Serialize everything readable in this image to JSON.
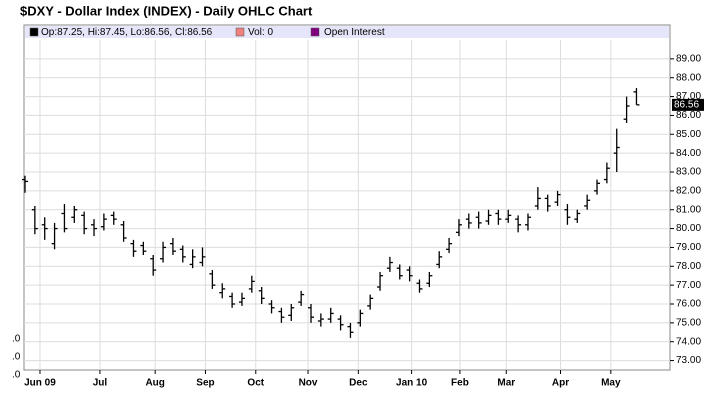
{
  "chart_data": {
    "type": "ohlc",
    "title": "$DXY - Dollar Index (INDEX) - Daily OHLC Chart",
    "legend": {
      "quote": "Op:87.25, Hi:87.45, Lo:86.56, Cl:86.56",
      "volume": "Vol: 0",
      "open_interest": "Open Interest"
    },
    "legend_colors": {
      "quote": "#000000",
      "volume": "#f08080",
      "open_interest": "#800080"
    },
    "last_label": "86.56",
    "last_value": 86.56,
    "volume_axis_labels": [
      ".0",
      ".0",
      ".0"
    ],
    "color": "#000000",
    "grid": true,
    "open": [
      82.6,
      81.0,
      80.2,
      79.2,
      80.8,
      80.6,
      80.7,
      80.2,
      80.1,
      80.7,
      80.2,
      79.2,
      79.1,
      78.4,
      78.4,
      79.2,
      78.9,
      78.1,
      78.2,
      77.6,
      76.6,
      76.4,
      76.1,
      76.8,
      76.7,
      76.0,
      75.6,
      75.4,
      76.1,
      75.8,
      75.1,
      75.2,
      75.2,
      74.8,
      75.0,
      75.9,
      76.9,
      77.9,
      77.9,
      77.8,
      77.1,
      77.1,
      78.1,
      78.9,
      79.8,
      80.5,
      80.6,
      80.4,
      80.8,
      80.5,
      80.5,
      80.2,
      81.2,
      81.6,
      81.4,
      81.0,
      80.5,
      81.2,
      82.0,
      82.6,
      84.0,
      85.8,
      87.25
    ],
    "high": [
      82.8,
      81.2,
      80.6,
      80.3,
      81.3,
      81.2,
      80.9,
      80.5,
      80.8,
      80.9,
      80.4,
      79.4,
      79.3,
      78.6,
      79.3,
      79.5,
      79.1,
      78.9,
      79.0,
      77.8,
      77.1,
      76.6,
      76.6,
      77.5,
      76.9,
      76.2,
      75.8,
      76.0,
      76.7,
      76.0,
      75.5,
      75.8,
      75.4,
      75.0,
      75.7,
      76.5,
      77.7,
      78.5,
      78.1,
      78.0,
      77.3,
      77.7,
      78.8,
      79.5,
      80.5,
      80.8,
      80.9,
      81.0,
      81.0,
      81.0,
      80.7,
      80.8,
      82.2,
      81.8,
      82.0,
      81.3,
      81.0,
      81.8,
      82.6,
      83.5,
      85.3,
      87.0,
      87.45
    ],
    "low": [
      81.9,
      79.7,
      79.4,
      78.9,
      79.8,
      80.3,
      79.7,
      79.6,
      79.9,
      80.2,
      79.3,
      78.5,
      78.6,
      77.5,
      78.2,
      78.6,
      78.2,
      77.9,
      78.0,
      76.8,
      76.3,
      75.8,
      75.9,
      76.6,
      76.0,
      75.5,
      75.0,
      75.1,
      75.9,
      75.0,
      74.8,
      75.0,
      74.6,
      74.2,
      74.8,
      75.7,
      76.7,
      77.7,
      77.3,
      77.2,
      76.6,
      76.9,
      77.9,
      78.7,
      79.6,
      80.0,
      80.0,
      80.2,
      80.2,
      80.3,
      79.8,
      79.9,
      81.0,
      80.9,
      81.2,
      80.2,
      80.3,
      81.0,
      81.8,
      82.4,
      83.0,
      85.6,
      86.56
    ],
    "close": [
      82.5,
      80.0,
      80.0,
      80.0,
      80.0,
      81.0,
      80.0,
      80.0,
      80.5,
      80.5,
      79.5,
      78.8,
      78.8,
      77.8,
      79.0,
      78.8,
      78.5,
      78.5,
      78.5,
      77.0,
      76.8,
      76.0,
      76.3,
      77.2,
      76.3,
      75.8,
      75.3,
      75.8,
      76.5,
      75.3,
      75.2,
      75.5,
      74.9,
      74.5,
      75.5,
      76.3,
      77.5,
      78.2,
      77.5,
      77.5,
      76.8,
      77.5,
      78.5,
      79.2,
      80.2,
      80.3,
      80.3,
      80.7,
      80.5,
      80.7,
      80.2,
      80.6,
      81.6,
      81.2,
      81.8,
      80.6,
      80.8,
      81.5,
      82.4,
      83.2,
      84.3,
      86.5,
      86.56
    ],
    "xlim": [
      -0.1,
      65.4
    ],
    "xticks": [
      {
        "value": 1.52,
        "label": "Jun 09"
      },
      {
        "value": 7.6,
        "label": "Jul"
      },
      {
        "value": 13.2,
        "label": "Aug"
      },
      {
        "value": 18.3,
        "label": "Sep"
      },
      {
        "value": 23.4,
        "label": "Oct"
      },
      {
        "value": 28.7,
        "label": "Nov"
      },
      {
        "value": 33.8,
        "label": "Dec"
      },
      {
        "value": 39.2,
        "label": "Jan 10"
      },
      {
        "value": 44.1,
        "label": "Feb"
      },
      {
        "value": 48.8,
        "label": "Mar"
      },
      {
        "value": 54.3,
        "label": "Apr"
      },
      {
        "value": 59.4,
        "label": "May"
      }
    ],
    "ylim": [
      72.5,
      90
    ],
    "yticks": [
      {
        "value": 73,
        "label": "73.00"
      },
      {
        "value": 74,
        "label": "74.00"
      },
      {
        "value": 75,
        "label": "75.00"
      },
      {
        "value": 76,
        "label": "76.00"
      },
      {
        "value": 77,
        "label": "77.00"
      },
      {
        "value": 78,
        "label": "78.00"
      },
      {
        "value": 79,
        "label": "79.00"
      },
      {
        "value": 80,
        "label": "80.00"
      },
      {
        "value": 81,
        "label": "81.00"
      },
      {
        "value": 82,
        "label": "82.00"
      },
      {
        "value": 83,
        "label": "83.00"
      },
      {
        "value": 84,
        "label": "84.00"
      },
      {
        "value": 85,
        "label": "85.00"
      },
      {
        "value": 86,
        "label": "86.00"
      },
      {
        "value": 87,
        "label": "87.00"
      },
      {
        "value": 88,
        "label": "88.00"
      },
      {
        "value": 89,
        "label": "89.00"
      }
    ]
  }
}
